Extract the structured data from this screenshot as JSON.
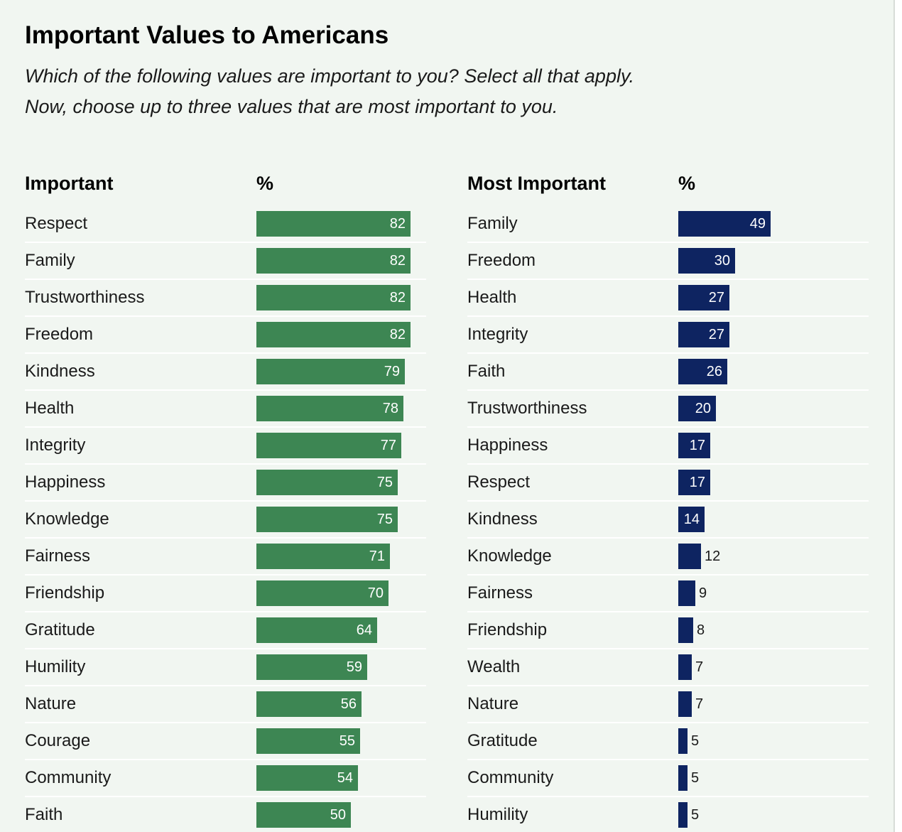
{
  "title": "Important Values to Americans",
  "subtitle_line1": "Which of the following values are important to you? Select all that apply.",
  "subtitle_line2": "Now, choose up to three values that are most important to you.",
  "colors": {
    "important_bar": "#3d8653",
    "most_important_bar": "#0e2461",
    "background": "#f1f6f1"
  },
  "chart_data": [
    {
      "type": "bar",
      "orientation": "horizontal",
      "header_label": "Important",
      "header_unit": "%",
      "categories": [
        "Respect",
        "Family",
        "Trustworthiness",
        "Freedom",
        "Kindness",
        "Health",
        "Integrity",
        "Happiness",
        "Knowledge",
        "Fairness",
        "Friendship",
        "Gratitude",
        "Humility",
        "Nature",
        "Courage",
        "Community",
        "Faith"
      ],
      "values": [
        82,
        82,
        82,
        82,
        79,
        78,
        77,
        75,
        75,
        71,
        70,
        64,
        59,
        56,
        55,
        54,
        50
      ],
      "xlim": [
        0,
        100
      ]
    },
    {
      "type": "bar",
      "orientation": "horizontal",
      "header_label": "Most Important",
      "header_unit": "%",
      "categories": [
        "Family",
        "Freedom",
        "Health",
        "Integrity",
        "Faith",
        "Trustworthiness",
        "Happiness",
        "Respect",
        "Kindness",
        "Knowledge",
        "Fairness",
        "Friendship",
        "Wealth",
        "Nature",
        "Gratitude",
        "Community",
        "Humility"
      ],
      "values": [
        49,
        30,
        27,
        27,
        26,
        20,
        17,
        17,
        14,
        12,
        9,
        8,
        7,
        7,
        5,
        5,
        5
      ],
      "xlim": [
        0,
        100
      ]
    }
  ]
}
